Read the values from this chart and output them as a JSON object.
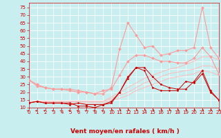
{
  "background_color": "#c8eef0",
  "grid_color": "#ffffff",
  "xlabel": "Vent moyen/en rafales ( km/h )",
  "xlabel_color": "#cc0000",
  "xlabel_fontsize": 6.5,
  "tick_color": "#cc0000",
  "tick_fontsize": 5.0,
  "ylim": [
    10,
    78
  ],
  "yticks": [
    10,
    15,
    20,
    25,
    30,
    35,
    40,
    45,
    50,
    55,
    60,
    65,
    70,
    75
  ],
  "xlim": [
    0,
    23
  ],
  "xticks": [
    0,
    1,
    2,
    3,
    4,
    5,
    6,
    7,
    8,
    9,
    10,
    11,
    12,
    13,
    14,
    15,
    16,
    17,
    18,
    19,
    20,
    21,
    22,
    23
  ],
  "series": [
    {
      "x": [
        0,
        1,
        2,
        3,
        4,
        5,
        6,
        7,
        8,
        9,
        10,
        11,
        12,
        13,
        14,
        15,
        16,
        17,
        18,
        19,
        20,
        21,
        22,
        23
      ],
      "y": [
        13,
        14,
        13,
        13,
        13,
        13,
        11,
        11,
        10,
        12,
        13,
        20,
        29,
        36,
        36,
        30,
        25,
        23,
        22,
        22,
        27,
        34,
        21,
        15
      ],
      "color": "#cc0000",
      "lw": 0.7,
      "marker": "*",
      "ms": 2.5
    },
    {
      "x": [
        0,
        1,
        2,
        3,
        4,
        5,
        6,
        7,
        8,
        9,
        10,
        11,
        12,
        13,
        14,
        15,
        16,
        17,
        18,
        19,
        20,
        21,
        22,
        23
      ],
      "y": [
        13,
        14,
        13,
        13,
        13,
        12,
        13,
        12,
        12,
        12,
        14,
        20,
        30,
        36,
        34,
        23,
        21,
        21,
        21,
        27,
        26,
        32,
        20,
        15
      ],
      "color": "#cc0000",
      "lw": 0.7,
      "marker": "D",
      "ms": 1.5
    },
    {
      "x": [
        0,
        1,
        2,
        3,
        4,
        5,
        6,
        7,
        8,
        9,
        10,
        11,
        12,
        13,
        14,
        15,
        16,
        17,
        18,
        19,
        20,
        21,
        22,
        23
      ],
      "y": [
        28,
        24,
        23,
        22,
        22,
        21,
        20,
        20,
        19,
        21,
        22,
        31,
        40,
        44,
        44,
        42,
        40,
        40,
        39,
        39,
        42,
        49,
        43,
        32
      ],
      "color": "#ff9999",
      "lw": 0.8,
      "marker": "D",
      "ms": 2.0
    },
    {
      "x": [
        0,
        1,
        2,
        3,
        4,
        5,
        6,
        7,
        8,
        9,
        10,
        11,
        12,
        13,
        14,
        15,
        16,
        17,
        18,
        19,
        20,
        21,
        22,
        23
      ],
      "y": [
        28,
        25,
        23,
        22,
        22,
        22,
        21,
        20,
        19,
        19,
        23,
        48,
        65,
        57,
        49,
        50,
        44,
        45,
        47,
        47,
        49,
        75,
        49,
        42
      ],
      "color": "#ff9999",
      "lw": 0.8,
      "marker": "D",
      "ms": 2.0
    },
    {
      "x": [
        0,
        1,
        2,
        3,
        4,
        5,
        6,
        7,
        8,
        9,
        10,
        11,
        12,
        13,
        14,
        15,
        16,
        17,
        18,
        19,
        20,
        21,
        22,
        23
      ],
      "y": [
        13,
        14,
        14,
        13,
        13,
        13,
        13,
        13,
        13,
        13,
        15,
        16,
        18,
        21,
        23,
        25,
        27,
        29,
        30,
        31,
        32,
        34,
        33,
        31
      ],
      "color": "#ffbbbb",
      "lw": 0.7,
      "marker": null,
      "ms": 0
    },
    {
      "x": [
        0,
        1,
        2,
        3,
        4,
        5,
        6,
        7,
        8,
        9,
        10,
        11,
        12,
        13,
        14,
        15,
        16,
        17,
        18,
        19,
        20,
        21,
        22,
        23
      ],
      "y": [
        13,
        14,
        14,
        14,
        14,
        14,
        14,
        14,
        14,
        14,
        16,
        18,
        20,
        23,
        26,
        28,
        30,
        32,
        33,
        34,
        35,
        37,
        37,
        35
      ],
      "color": "#ffbbbb",
      "lw": 0.7,
      "marker": null,
      "ms": 0
    },
    {
      "x": [
        0,
        1,
        2,
        3,
        4,
        5,
        6,
        7,
        8,
        9,
        10,
        11,
        12,
        13,
        14,
        15,
        16,
        17,
        18,
        19,
        20,
        21,
        22,
        23
      ],
      "y": [
        14,
        14,
        14,
        14,
        14,
        14,
        14,
        14,
        14,
        14,
        17,
        20,
        23,
        26,
        29,
        31,
        33,
        35,
        36,
        38,
        40,
        43,
        43,
        41
      ],
      "color": "#ffbbbb",
      "lw": 0.7,
      "marker": null,
      "ms": 0
    }
  ],
  "arrow_color": "#cc0000",
  "diagonal_arrows": [
    0,
    1,
    2,
    3,
    4,
    5,
    6,
    7,
    8,
    9
  ],
  "horizontal_arrows": [
    10,
    11,
    12,
    13,
    14,
    15,
    16,
    17,
    18,
    19,
    20,
    21,
    22,
    23
  ]
}
